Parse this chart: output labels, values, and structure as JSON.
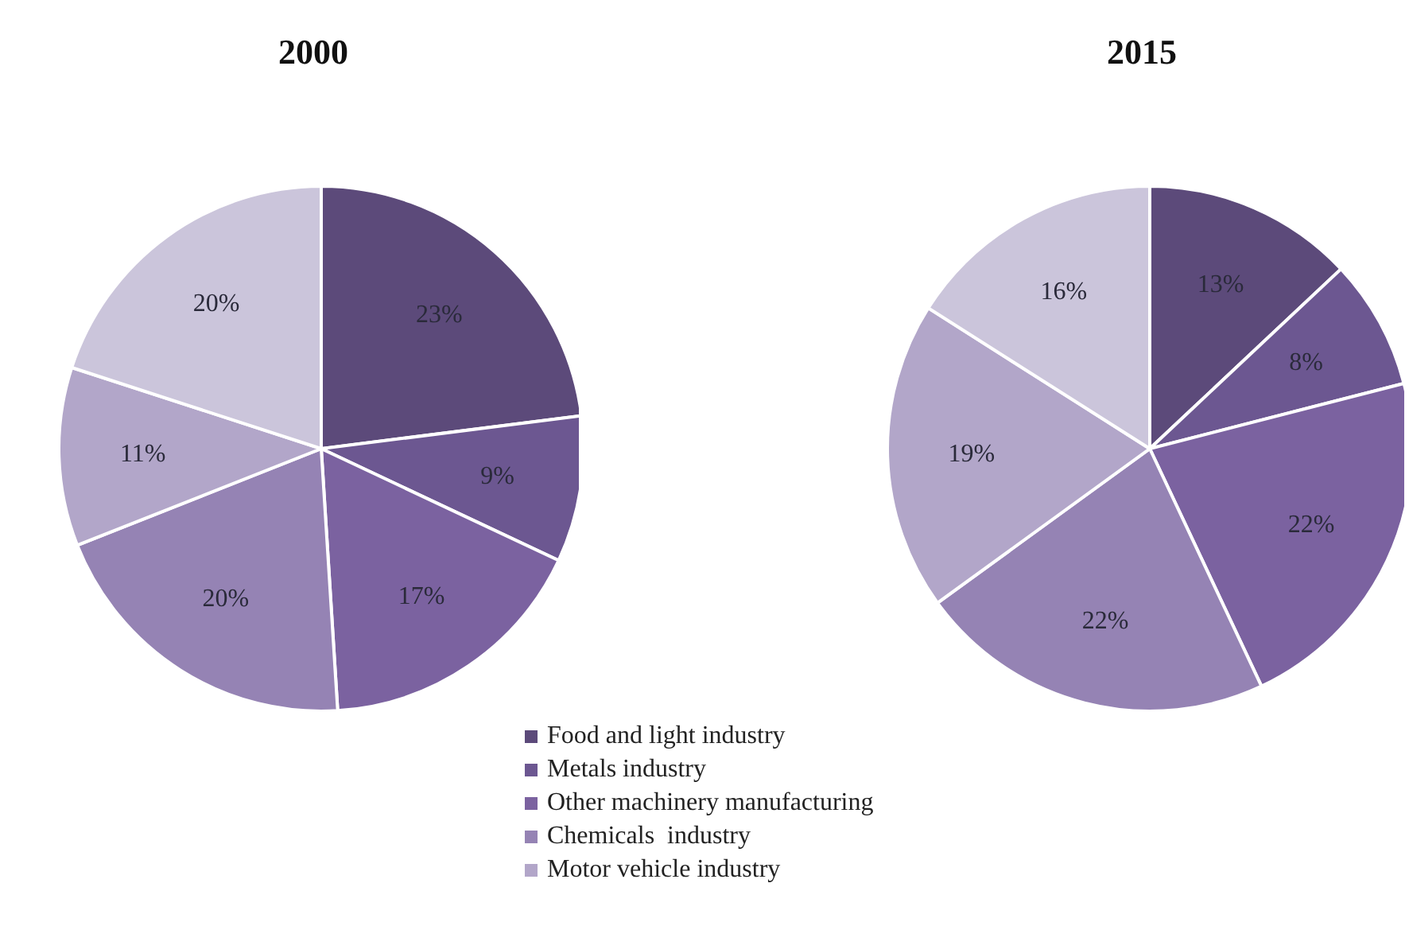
{
  "chart_data": [
    {
      "type": "pie",
      "title": "2000",
      "categories": [
        "Food and light industry",
        "Metals industry",
        "Other machinery manufacturing",
        "Chemicals  industry",
        "Motor vehicle industry",
        null
      ],
      "values": [
        23,
        9,
        17,
        20,
        11,
        20
      ],
      "value_labels": [
        "23%",
        "9%",
        "17%",
        "20%",
        "11%",
        "20%"
      ],
      "colors": [
        "#5c4a7a",
        "#6c5791",
        "#7b62a0",
        "#9583b4",
        "#b2a6c9",
        "#cbc5db"
      ],
      "legend": "bottom"
    },
    {
      "type": "pie",
      "title": "2015",
      "categories": [
        null,
        null,
        null,
        null,
        null,
        null
      ],
      "values": [
        13,
        8,
        22,
        22,
        19,
        16
      ],
      "value_labels": [
        "13%",
        "8%",
        "22%",
        "22%",
        "19%",
        "16%"
      ],
      "colors": [
        "#5c4a7a",
        "#6c5791",
        "#7b62a0",
        "#9583b4",
        "#b2a6c9",
        "#cbc5db"
      ]
    }
  ]
}
